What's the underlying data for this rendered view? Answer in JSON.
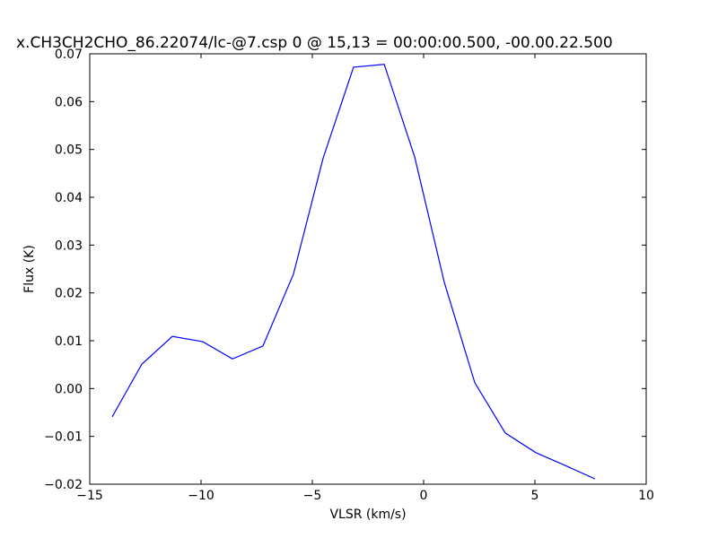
{
  "chart_data": {
    "type": "line",
    "title": "x.CH3CH2CHO_86.22074/lc-@7.csp 0 @ 15,13 = 00:00:00.500, -00.00.22.500",
    "x_label": "VLSR (km/s)",
    "y_label": "Flux (K)",
    "x": [
      -13.99,
      -12.66,
      -11.29,
      -9.92,
      -8.59,
      -7.22,
      -5.85,
      -4.52,
      -3.15,
      -1.77,
      -0.4,
      0.93,
      2.3,
      3.67,
      5.04,
      6.37,
      7.7
    ],
    "values": [
      -0.0059,
      0.0051,
      0.0109,
      0.0098,
      0.0062,
      0.0089,
      0.0239,
      0.0481,
      0.0672,
      0.0678,
      0.0484,
      0.0222,
      0.0012,
      -0.0093,
      -0.0134,
      -0.0161,
      -0.0189
    ],
    "color": "#0000ff",
    "xlim": [
      -15,
      10
    ],
    "xticks": [
      {
        "value": -15,
        "label": "−15"
      },
      {
        "value": -10,
        "label": "−10"
      },
      {
        "value": -5,
        "label": "−5"
      },
      {
        "value": 0,
        "label": "0"
      },
      5,
      10
    ],
    "ylim": [
      -0.02,
      0.07
    ],
    "yticks": [
      {
        "value": -0.02,
        "label": "−0.02"
      },
      {
        "value": -0.01,
        "label": "−0.01"
      },
      {
        "value": 0,
        "label": "0.00"
      },
      0.01,
      0.02,
      0.03,
      0.04,
      0.05,
      0.06,
      0.07
    ],
    "grid": false
  }
}
